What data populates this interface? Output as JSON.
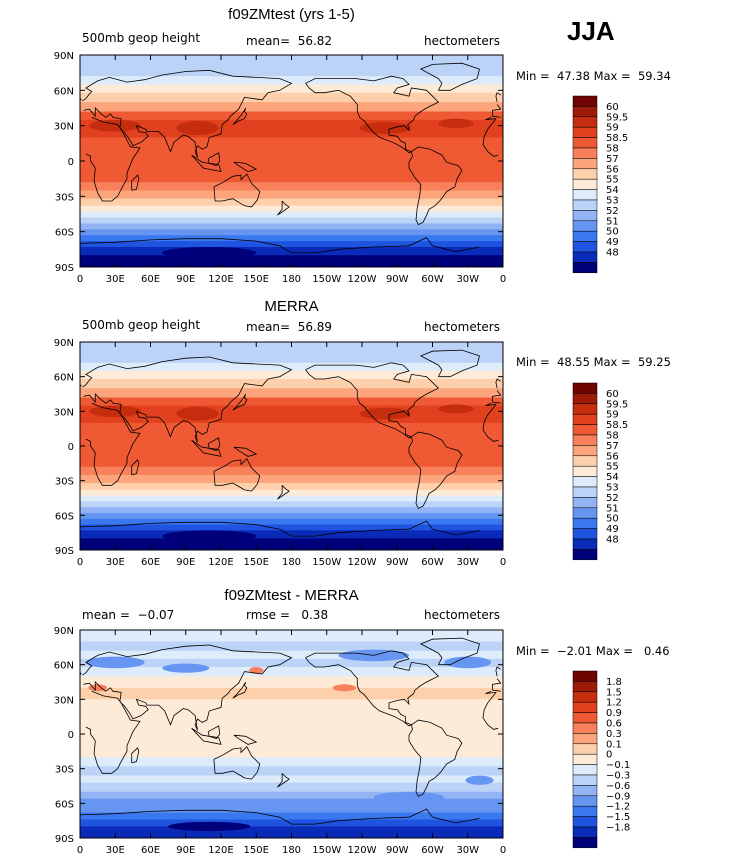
{
  "season": "JJA",
  "colors": {
    "abs": [
      "#00007a",
      "#0a2ab8",
      "#1f54e0",
      "#3a78f0",
      "#6796f2",
      "#93b4f4",
      "#bcd3f8",
      "#deebfb",
      "#fdebd8",
      "#fdcfaa",
      "#fca57c",
      "#f8805a",
      "#ef5a34",
      "#e1411e",
      "#c62d0f",
      "#9e1a08",
      "#6e0503"
    ],
    "diff": [
      "#00007a",
      "#0a2ab8",
      "#1f54e0",
      "#3a78f0",
      "#6796f2",
      "#93b4f4",
      "#bcd3f8",
      "#deebfb",
      "#fdebd8",
      "#fdcfaa",
      "#fca57c",
      "#f8805a",
      "#ef5a34",
      "#e1411e",
      "#c62d0f",
      "#9e1a08",
      "#6e0503"
    ]
  },
  "x_ticks": [
    "0",
    "30E",
    "60E",
    "90E",
    "120E",
    "150E",
    "180",
    "150W",
    "120W",
    "90W",
    "60W",
    "30W",
    "0"
  ],
  "y_ticks": [
    "90N",
    "60N",
    "30N",
    "0",
    "30S",
    "60S",
    "90S"
  ],
  "panels": [
    {
      "title": "f09ZMtest (yrs 1-5)",
      "left_label": "500mb geop height",
      "center_label": "mean=  56.82",
      "right_label": "hectometers",
      "minmax": "Min =  47.38 Max =  59.34",
      "colorbar_labels": [
        "60",
        "59.5",
        "59",
        "58.5",
        "58",
        "57",
        "56",
        "55",
        "54",
        "53",
        "52",
        "51",
        "50",
        "49",
        "48"
      ],
      "palette": "abs"
    },
    {
      "title": "MERRA",
      "left_label": "500mb geop height",
      "center_label": "mean=  56.89",
      "right_label": "hectometers",
      "minmax": "Min =  48.55 Max =  59.25",
      "colorbar_labels": [
        "60",
        "59.5",
        "59",
        "58.5",
        "58",
        "57",
        "56",
        "55",
        "54",
        "53",
        "52",
        "51",
        "50",
        "49",
        "48"
      ],
      "palette": "abs"
    },
    {
      "title": "f09ZMtest - MERRA",
      "left_label": "mean =  −0.07",
      "center_label": "rmse =   0.38",
      "right_label": "hectometers",
      "minmax": "Min =  −2.01 Max =   0.46",
      "colorbar_labels": [
        "1.8",
        "1.5",
        "1.2",
        "0.9",
        "0.6",
        "0.3",
        "0.1",
        "0",
        "−0.1",
        "−0.3",
        "−0.6",
        "−0.9",
        "−1.2",
        "−1.5",
        "−1.8"
      ],
      "palette": "diff"
    }
  ]
}
